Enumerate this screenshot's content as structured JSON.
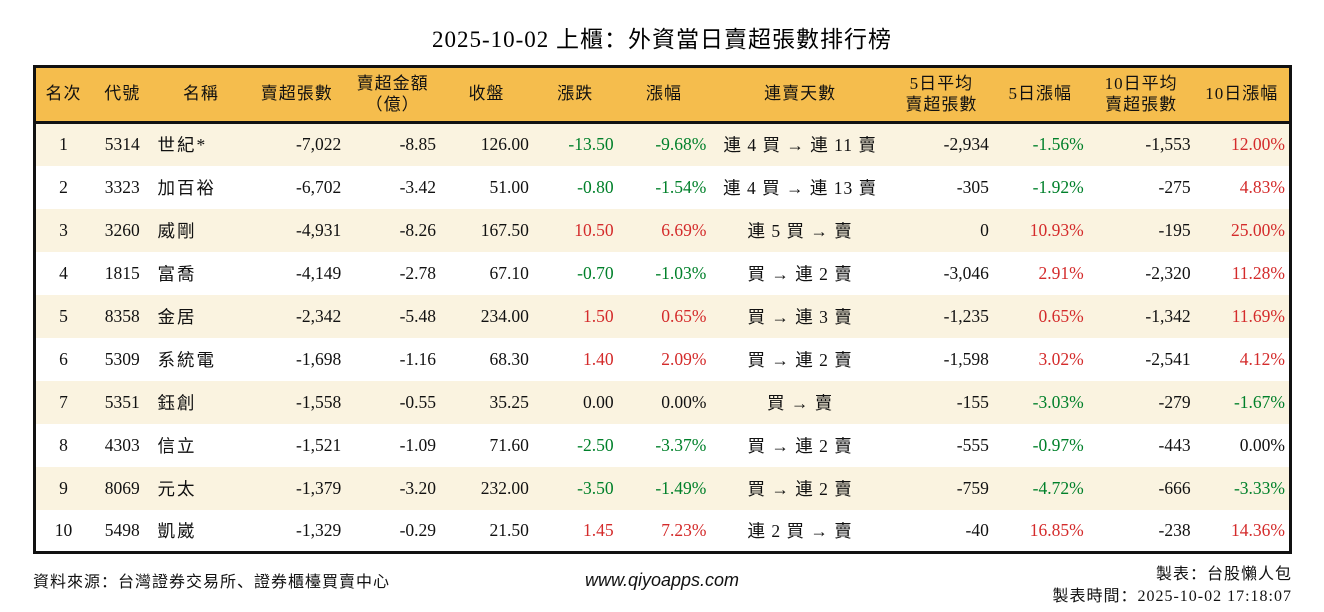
{
  "title": "2025-10-02 上櫃：外資當日賣超張數排行榜",
  "colors": {
    "header_bg": "#F5BD4D",
    "row_alt_bg": "#FAF3E0",
    "up_red": "#D42B2B",
    "down_green": "#00802A",
    "border": "#111111"
  },
  "chart_data": {
    "type": "table",
    "title": "2025-10-02 上櫃：外資當日賣超張數排行榜",
    "columns": [
      "名次",
      "代號",
      "名稱",
      "賣超張數",
      "賣超金額\n（億）",
      "收盤",
      "漲跌",
      "漲幅",
      "連賣天數",
      "5日平均\n賣超張數",
      "5日漲幅",
      "10日平均\n賣超張數",
      "10日漲幅"
    ],
    "rows": [
      {
        "rank": "1",
        "code": "5314",
        "name": "世紀*",
        "sell_qty": "-7,022",
        "sell_amt": "-8.85",
        "close": "126.00",
        "change": "-13.50",
        "change_pct": "-9.68%",
        "streak": "連 4 買 → 連 11 賣",
        "avg5": "-2,934",
        "pct5": "-1.56%",
        "avg10": "-1,553",
        "pct10": "12.00%",
        "chg_dir": "down",
        "pct5_dir": "down",
        "pct10_dir": "up"
      },
      {
        "rank": "2",
        "code": "3323",
        "name": "加百裕",
        "sell_qty": "-6,702",
        "sell_amt": "-3.42",
        "close": "51.00",
        "change": "-0.80",
        "change_pct": "-1.54%",
        "streak": "連 4 買 → 連 13 賣",
        "avg5": "-305",
        "pct5": "-1.92%",
        "avg10": "-275",
        "pct10": "4.83%",
        "chg_dir": "down",
        "pct5_dir": "down",
        "pct10_dir": "up"
      },
      {
        "rank": "3",
        "code": "3260",
        "name": "威剛",
        "sell_qty": "-4,931",
        "sell_amt": "-8.26",
        "close": "167.50",
        "change": "10.50",
        "change_pct": "6.69%",
        "streak": "連 5 買 → 賣",
        "avg5": "0",
        "pct5": "10.93%",
        "avg10": "-195",
        "pct10": "25.00%",
        "chg_dir": "up",
        "pct5_dir": "up",
        "pct10_dir": "up"
      },
      {
        "rank": "4",
        "code": "1815",
        "name": "富喬",
        "sell_qty": "-4,149",
        "sell_amt": "-2.78",
        "close": "67.10",
        "change": "-0.70",
        "change_pct": "-1.03%",
        "streak": "買 → 連 2 賣",
        "avg5": "-3,046",
        "pct5": "2.91%",
        "avg10": "-2,320",
        "pct10": "11.28%",
        "chg_dir": "down",
        "pct5_dir": "up",
        "pct10_dir": "up"
      },
      {
        "rank": "5",
        "code": "8358",
        "name": "金居",
        "sell_qty": "-2,342",
        "sell_amt": "-5.48",
        "close": "234.00",
        "change": "1.50",
        "change_pct": "0.65%",
        "streak": "買 → 連 3 賣",
        "avg5": "-1,235",
        "pct5": "0.65%",
        "avg10": "-1,342",
        "pct10": "11.69%",
        "chg_dir": "up",
        "pct5_dir": "up",
        "pct10_dir": "up"
      },
      {
        "rank": "6",
        "code": "5309",
        "name": "系統電",
        "sell_qty": "-1,698",
        "sell_amt": "-1.16",
        "close": "68.30",
        "change": "1.40",
        "change_pct": "2.09%",
        "streak": "買 → 連 2 賣",
        "avg5": "-1,598",
        "pct5": "3.02%",
        "avg10": "-2,541",
        "pct10": "4.12%",
        "chg_dir": "up",
        "pct5_dir": "up",
        "pct10_dir": "up"
      },
      {
        "rank": "7",
        "code": "5351",
        "name": "鈺創",
        "sell_qty": "-1,558",
        "sell_amt": "-0.55",
        "close": "35.25",
        "change": "0.00",
        "change_pct": "0.00%",
        "streak": "買 → 賣",
        "avg5": "-155",
        "pct5": "-3.03%",
        "avg10": "-279",
        "pct10": "-1.67%",
        "chg_dir": "flat",
        "pct5_dir": "down",
        "pct10_dir": "down"
      },
      {
        "rank": "8",
        "code": "4303",
        "name": "信立",
        "sell_qty": "-1,521",
        "sell_amt": "-1.09",
        "close": "71.60",
        "change": "-2.50",
        "change_pct": "-3.37%",
        "streak": "買 → 連 2 賣",
        "avg5": "-555",
        "pct5": "-0.97%",
        "avg10": "-443",
        "pct10": "0.00%",
        "chg_dir": "down",
        "pct5_dir": "down",
        "pct10_dir": "flat"
      },
      {
        "rank": "9",
        "code": "8069",
        "name": "元太",
        "sell_qty": "-1,379",
        "sell_amt": "-3.20",
        "close": "232.00",
        "change": "-3.50",
        "change_pct": "-1.49%",
        "streak": "買 → 連 2 賣",
        "avg5": "-759",
        "pct5": "-4.72%",
        "avg10": "-666",
        "pct10": "-3.33%",
        "chg_dir": "down",
        "pct5_dir": "down",
        "pct10_dir": "down"
      },
      {
        "rank": "10",
        "code": "5498",
        "name": "凱崴",
        "sell_qty": "-1,329",
        "sell_amt": "-0.29",
        "close": "21.50",
        "change": "1.45",
        "change_pct": "7.23%",
        "streak": "連 2 買 → 賣",
        "avg5": "-40",
        "pct5": "16.85%",
        "avg10": "-238",
        "pct10": "14.36%",
        "chg_dir": "up",
        "pct5_dir": "up",
        "pct10_dir": "up"
      }
    ]
  },
  "footer": {
    "source": "資料來源：台灣證券交易所、證券櫃檯買賣中心",
    "url": "www.qiyoapps.com",
    "maker": "製表：台股懶人包",
    "time": "製表時間：2025-10-02 17:18:07"
  }
}
